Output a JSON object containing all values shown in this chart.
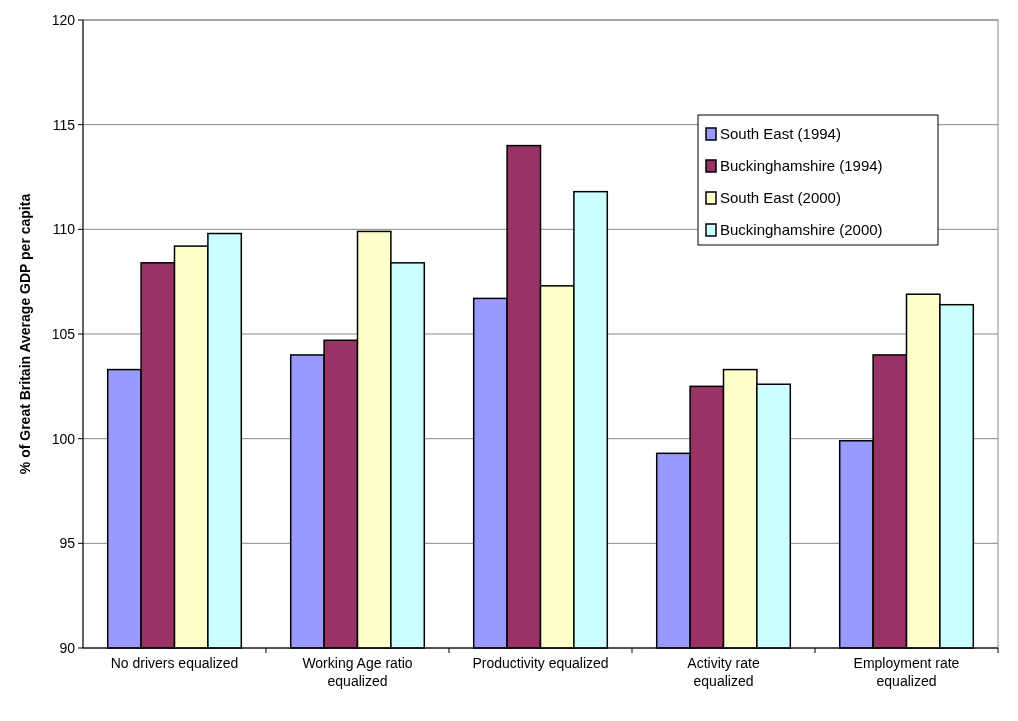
{
  "chart_data": {
    "type": "bar",
    "ylabel": "% of Great Britain Average GDP per capita",
    "categories": [
      "No drivers equalized",
      "Working Age ratio equalized",
      "Productivity equalized",
      "Activity rate equalized",
      "Employment rate equalized"
    ],
    "series": [
      {
        "name": "South East (1994)",
        "color": "#9999ff",
        "values": [
          103.3,
          104.0,
          106.7,
          99.3,
          99.9
        ]
      },
      {
        "name": "Buckinghamshire (1994)",
        "color": "#993366",
        "values": [
          108.4,
          104.7,
          114.0,
          102.5,
          104.0
        ]
      },
      {
        "name": "South East (2000)",
        "color": "#ffffcc",
        "values": [
          109.2,
          109.9,
          107.3,
          103.3,
          106.9
        ]
      },
      {
        "name": "Buckinghamshire (2000)",
        "color": "#ccffff",
        "values": [
          109.8,
          108.4,
          111.8,
          102.6,
          106.4
        ]
      }
    ],
    "ylim": [
      90,
      120
    ],
    "yticks": [
      90,
      95,
      100,
      105,
      110,
      115,
      120
    ],
    "grid": "y",
    "legend": "top right"
  }
}
